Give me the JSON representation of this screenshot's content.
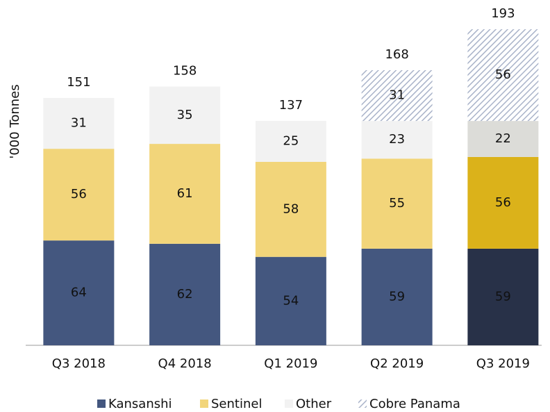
{
  "chart_data": {
    "type": "stacked_bar",
    "y_label": "'000 Tonnes",
    "categories": [
      "Q3 2018",
      "Q4 2018",
      "Q1 2019",
      "Q2 2019",
      "Q3 2019"
    ],
    "series": [
      {
        "name": "Kansanshi",
        "color": "#44577f",
        "colors": [
          "#44577f",
          "#44577f",
          "#44577f",
          "#44577f",
          "#283148"
        ],
        "values": [
          64,
          62,
          54,
          59,
          59
        ]
      },
      {
        "name": "Sentinel",
        "color": "#f2d57a",
        "colors": [
          "#f2d57a",
          "#f2d57a",
          "#f2d57a",
          "#f2d57a",
          "#dbb21a"
        ],
        "values": [
          56,
          61,
          58,
          55,
          56
        ]
      },
      {
        "name": "Other",
        "color": "#f2f2f2",
        "colors": [
          "#f2f2f2",
          "#f2f2f2",
          "#f2f2f2",
          "#f2f2f2",
          "#dcdcd8"
        ],
        "values": [
          31,
          35,
          25,
          23,
          22
        ]
      },
      {
        "name": "Cobre Panama",
        "color": "#a9b3c9",
        "pattern": "hatch",
        "values": [
          null,
          null,
          null,
          31,
          56
        ]
      }
    ],
    "totals": [
      151,
      158,
      137,
      168,
      193
    ],
    "ylim": [
      0,
      210
    ],
    "legend": "bottom"
  }
}
